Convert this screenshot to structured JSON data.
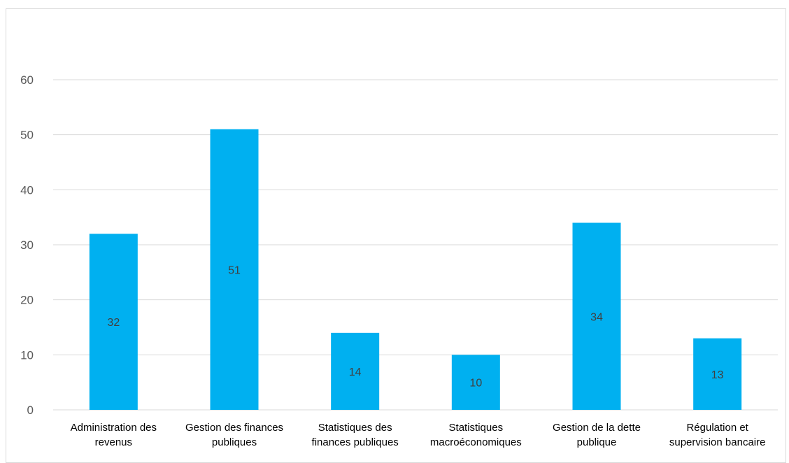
{
  "chart_data": {
    "type": "bar",
    "title": "",
    "xlabel": "",
    "ylabel": "",
    "categories": [
      [
        "Administration des",
        "revenus"
      ],
      [
        "Gestion des finances",
        "publiques"
      ],
      [
        "Statistiques des",
        "finances publiques"
      ],
      [
        "Statistiques",
        "macroéconomiques"
      ],
      [
        "Gestion de la dette",
        "publique"
      ],
      [
        "Régulation et",
        "supervision bancaire"
      ]
    ],
    "values": [
      32,
      51,
      14,
      10,
      34,
      13
    ],
    "ylim": [
      0,
      60
    ],
    "yticks": [
      0,
      10,
      20,
      30,
      40,
      50,
      60
    ],
    "grid": true,
    "legend": "none",
    "colors": {
      "bar": "#00b0f0",
      "grid": "#d9d9d9",
      "tick_text": "#595959",
      "category_text": "#000000",
      "data_label_text": "#404040"
    }
  }
}
